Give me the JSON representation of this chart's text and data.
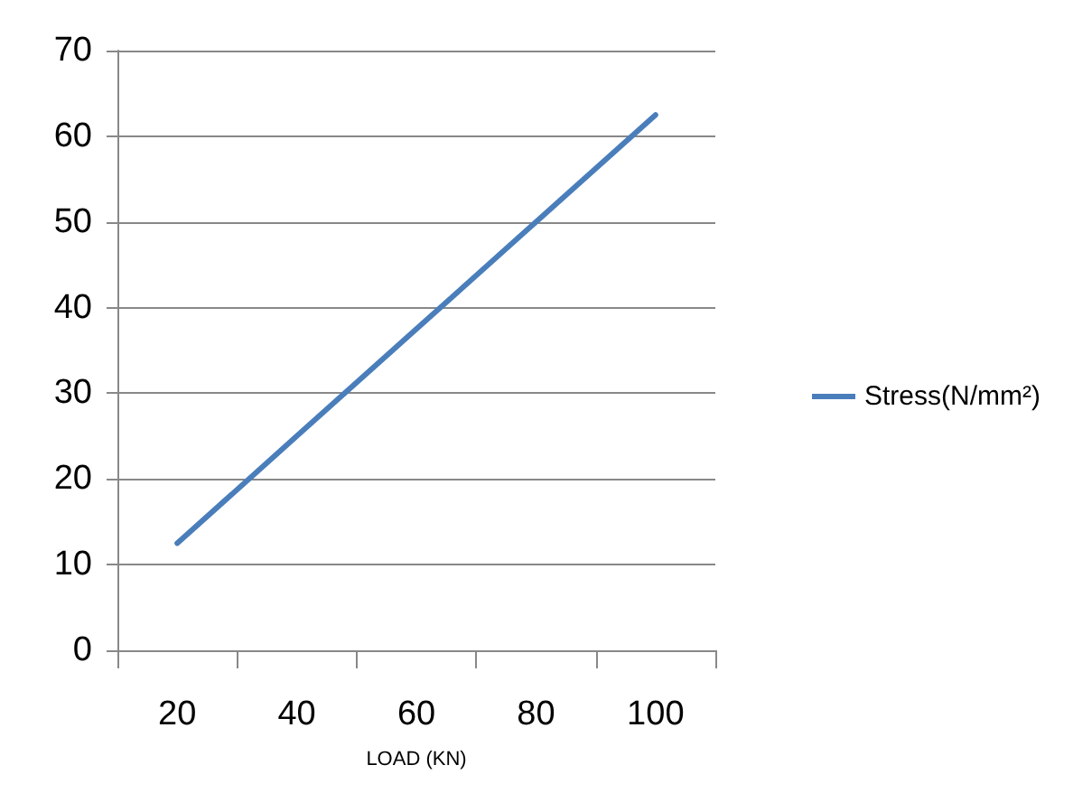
{
  "chart_data": {
    "type": "line",
    "xlabel": "LOAD (KN)",
    "categories": [
      "20",
      "40",
      "60",
      "80",
      "100"
    ],
    "series": [
      {
        "name": "Stress(N/mm²)",
        "color": "#4a7ebb",
        "values": [
          12.5,
          25,
          37.5,
          50,
          62.5
        ]
      }
    ],
    "ylim": [
      0,
      70
    ],
    "yticks": [
      0,
      10,
      20,
      30,
      40,
      50,
      60,
      70
    ],
    "grid": "y",
    "legend": "right",
    "marker": "none",
    "line_style": "solid"
  }
}
